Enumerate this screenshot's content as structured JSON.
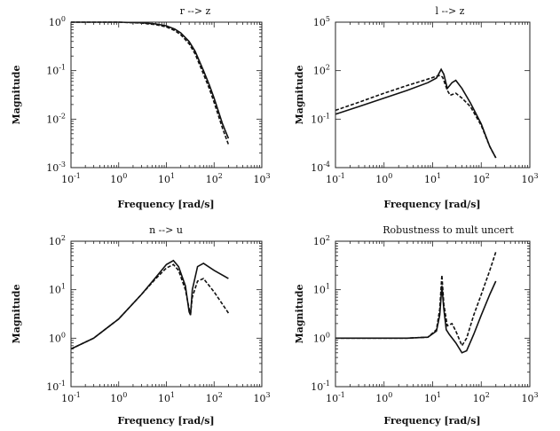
{
  "chart_data": [
    {
      "type": "line",
      "title": "r --> z",
      "xlabel": "Frequency [rad/s]",
      "ylabel": "Magnitude",
      "xscale": "log",
      "yscale": "log",
      "xlim": [
        0.1,
        1000
      ],
      "ylim": [
        0.001,
        1
      ],
      "x_ticks": [
        {
          "v": 0.1,
          "b": "10",
          "e": "-1"
        },
        {
          "v": 1,
          "b": "10",
          "e": "0"
        },
        {
          "v": 10,
          "b": "10",
          "e": "1"
        },
        {
          "v": 100,
          "b": "10",
          "e": "2"
        },
        {
          "v": 1000,
          "b": "10",
          "e": "3"
        }
      ],
      "y_ticks": [
        {
          "v": 0.001,
          "b": "10",
          "e": "-3"
        },
        {
          "v": 0.01,
          "b": "10",
          "e": "-2"
        },
        {
          "v": 0.1,
          "b": "10",
          "e": "-1"
        },
        {
          "v": 1,
          "b": "10",
          "e": "0"
        }
      ],
      "grid": false,
      "series": [
        {
          "style": "solid",
          "points": [
            [
              0.1,
              1
            ],
            [
              1,
              1
            ],
            [
              3,
              0.97
            ],
            [
              6,
              0.92
            ],
            [
              10,
              0.84
            ],
            [
              15,
              0.72
            ],
            [
              20,
              0.6
            ],
            [
              30,
              0.4
            ],
            [
              40,
              0.25
            ],
            [
              60,
              0.1
            ],
            [
              80,
              0.05
            ],
            [
              100,
              0.027
            ],
            [
              150,
              0.008
            ],
            [
              200,
              0.004
            ]
          ]
        },
        {
          "style": "dashed",
          "points": [
            [
              0.1,
              1
            ],
            [
              1,
              1
            ],
            [
              3,
              0.96
            ],
            [
              6,
              0.89
            ],
            [
              10,
              0.8
            ],
            [
              15,
              0.67
            ],
            [
              20,
              0.55
            ],
            [
              30,
              0.36
            ],
            [
              40,
              0.22
            ],
            [
              60,
              0.085
            ],
            [
              80,
              0.042
            ],
            [
              100,
              0.022
            ],
            [
              150,
              0.0065
            ],
            [
              200,
              0.003
            ]
          ]
        }
      ]
    },
    {
      "type": "line",
      "title": "l --> z",
      "xlabel": "Frequency [rad/s]",
      "ylabel": "Magnitude",
      "xscale": "log",
      "yscale": "log",
      "xlim": [
        0.1,
        1000
      ],
      "ylim": [
        0.0001,
        100000
      ],
      "x_ticks": [
        {
          "v": 0.1,
          "b": "10",
          "e": "-1"
        },
        {
          "v": 1,
          "b": "10",
          "e": "0"
        },
        {
          "v": 10,
          "b": "10",
          "e": "1"
        },
        {
          "v": 100,
          "b": "10",
          "e": "2"
        },
        {
          "v": 1000,
          "b": "10",
          "e": "3"
        }
      ],
      "y_ticks": [
        {
          "v": 0.0001,
          "b": "10",
          "e": "-4"
        },
        {
          "v": 0.1,
          "b": "10",
          "e": "-1"
        },
        {
          "v": 100,
          "b": "10",
          "e": "2"
        },
        {
          "v": 100000,
          "b": "10",
          "e": "5"
        }
      ],
      "grid": false,
      "series": [
        {
          "style": "solid",
          "points": [
            [
              0.1,
              0.2
            ],
            [
              0.3,
              0.6
            ],
            [
              1,
              2
            ],
            [
              3,
              6
            ],
            [
              8,
              18
            ],
            [
              12,
              35
            ],
            [
              15,
              120
            ],
            [
              17,
              60
            ],
            [
              20,
              8
            ],
            [
              25,
              18
            ],
            [
              30,
              25
            ],
            [
              40,
              8
            ],
            [
              60,
              1
            ],
            [
              100,
              0.05
            ],
            [
              150,
              0.002
            ],
            [
              200,
              0.0004
            ]
          ]
        },
        {
          "style": "dashed",
          "points": [
            [
              0.1,
              0.35
            ],
            [
              0.3,
              1.1
            ],
            [
              1,
              4
            ],
            [
              3,
              12
            ],
            [
              8,
              30
            ],
            [
              12,
              45
            ],
            [
              14,
              50
            ],
            [
              16,
              40
            ],
            [
              20,
              6
            ],
            [
              23,
              3
            ],
            [
              30,
              4
            ],
            [
              40,
              2
            ],
            [
              60,
              0.6
            ],
            [
              100,
              0.04
            ],
            [
              150,
              0.002
            ],
            [
              200,
              0.0004
            ]
          ]
        }
      ]
    },
    {
      "type": "line",
      "title": "n --> u",
      "xlabel": "Frequency [rad/s]",
      "ylabel": "Magnitude",
      "xscale": "log",
      "yscale": "log",
      "xlim": [
        0.1,
        1000
      ],
      "ylim": [
        0.1,
        100
      ],
      "x_ticks": [
        {
          "v": 0.1,
          "b": "10",
          "e": "-1"
        },
        {
          "v": 1,
          "b": "10",
          "e": "0"
        },
        {
          "v": 10,
          "b": "10",
          "e": "1"
        },
        {
          "v": 100,
          "b": "10",
          "e": "2"
        },
        {
          "v": 1000,
          "b": "10",
          "e": "3"
        }
      ],
      "y_ticks": [
        {
          "v": 0.1,
          "b": "10",
          "e": "-1"
        },
        {
          "v": 1,
          "b": "10",
          "e": "0"
        },
        {
          "v": 10,
          "b": "10",
          "e": "1"
        },
        {
          "v": 100,
          "b": "10",
          "e": "2"
        }
      ],
      "grid": false,
      "series": [
        {
          "style": "solid",
          "points": [
            [
              0.1,
              0.6
            ],
            [
              0.3,
              1
            ],
            [
              1,
              2.5
            ],
            [
              3,
              8
            ],
            [
              6,
              18
            ],
            [
              10,
              33
            ],
            [
              14,
              40
            ],
            [
              18,
              30
            ],
            [
              25,
              12
            ],
            [
              30,
              3.5
            ],
            [
              32,
              3
            ],
            [
              35,
              10
            ],
            [
              45,
              30
            ],
            [
              60,
              35
            ],
            [
              100,
              25
            ],
            [
              200,
              17
            ]
          ]
        },
        {
          "style": "dashed",
          "points": [
            [
              0.1,
              0.6
            ],
            [
              0.3,
              1
            ],
            [
              1,
              2.5
            ],
            [
              3,
              8
            ],
            [
              6,
              17
            ],
            [
              10,
              28
            ],
            [
              14,
              33
            ],
            [
              18,
              25
            ],
            [
              25,
              10
            ],
            [
              30,
              4
            ],
            [
              32,
              3.2
            ],
            [
              35,
              7
            ],
            [
              45,
              15
            ],
            [
              60,
              17
            ],
            [
              100,
              9
            ],
            [
              200,
              3.3
            ]
          ]
        }
      ]
    },
    {
      "type": "line",
      "title": "Robustness to mult uncert",
      "xlabel": "Frequency [rad/s]",
      "ylabel": "Magnitude",
      "xscale": "log",
      "yscale": "log",
      "xlim": [
        0.1,
        1000
      ],
      "ylim": [
        0.1,
        100
      ],
      "x_ticks": [
        {
          "v": 0.1,
          "b": "10",
          "e": "-1"
        },
        {
          "v": 1,
          "b": "10",
          "e": "0"
        },
        {
          "v": 10,
          "b": "10",
          "e": "1"
        },
        {
          "v": 100,
          "b": "10",
          "e": "2"
        },
        {
          "v": 1000,
          "b": "10",
          "e": "3"
        }
      ],
      "y_ticks": [
        {
          "v": 0.1,
          "b": "10",
          "e": "-1"
        },
        {
          "v": 1,
          "b": "10",
          "e": "0"
        },
        {
          "v": 10,
          "b": "10",
          "e": "1"
        },
        {
          "v": 100,
          "b": "10",
          "e": "2"
        }
      ],
      "grid": false,
      "series": [
        {
          "style": "solid",
          "points": [
            [
              0.1,
              1
            ],
            [
              1,
              1
            ],
            [
              3,
              1
            ],
            [
              8,
              1.05
            ],
            [
              12,
              1.4
            ],
            [
              14,
              3
            ],
            [
              15.5,
              12
            ],
            [
              17,
              4
            ],
            [
              19,
              1.5
            ],
            [
              22,
              1.2
            ],
            [
              30,
              0.8
            ],
            [
              40,
              0.5
            ],
            [
              50,
              0.55
            ],
            [
              70,
              1.2
            ],
            [
              100,
              3
            ],
            [
              150,
              8
            ],
            [
              200,
              15
            ]
          ]
        },
        {
          "style": "dashed",
          "points": [
            [
              0.1,
              1
            ],
            [
              1,
              1
            ],
            [
              3,
              1
            ],
            [
              8,
              1.05
            ],
            [
              12,
              1.5
            ],
            [
              14,
              4
            ],
            [
              15.5,
              20
            ],
            [
              17,
              5
            ],
            [
              20,
              1.8
            ],
            [
              25,
              2
            ],
            [
              30,
              1.4
            ],
            [
              40,
              0.7
            ],
            [
              50,
              1
            ],
            [
              70,
              3
            ],
            [
              100,
              8
            ],
            [
              150,
              25
            ],
            [
              200,
              60
            ]
          ]
        }
      ]
    }
  ]
}
